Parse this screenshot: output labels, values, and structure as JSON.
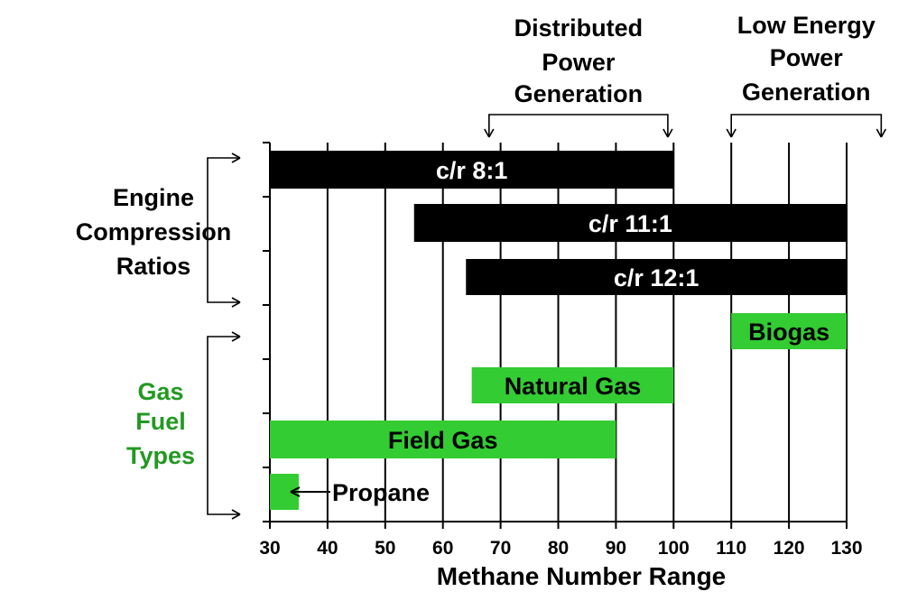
{
  "chart_data": {
    "type": "bar",
    "orientation": "horizontal-range",
    "xlabel": "Methane Number Range",
    "xlim": [
      30,
      130
    ],
    "xticks": [
      30,
      40,
      50,
      60,
      70,
      80,
      90,
      100,
      110,
      120,
      130
    ],
    "tick_labels": [
      "30",
      "40",
      "50",
      "60",
      "70",
      "80",
      "90",
      "100",
      "110",
      "120",
      "130"
    ],
    "grid": true,
    "bars": [
      {
        "label": "c/r 8:1",
        "start": 30,
        "end": 100,
        "group": "engine",
        "color": "#000000"
      },
      {
        "label": "c/r 11:1",
        "start": 55,
        "end": 130,
        "group": "engine",
        "color": "#000000"
      },
      {
        "label": "c/r 12:1",
        "start": 64,
        "end": 130,
        "group": "engine",
        "color": "#000000"
      },
      {
        "label": "Biogas",
        "start": 110,
        "end": 130,
        "group": "fuel",
        "color": "#33cc33"
      },
      {
        "label": "Natural Gas",
        "start": 65,
        "end": 100,
        "group": "fuel",
        "color": "#33cc33"
      },
      {
        "label": "Field Gas",
        "start": 30,
        "end": 90,
        "group": "fuel",
        "color": "#33cc33"
      },
      {
        "label": "Propane",
        "start": 30,
        "end": 35,
        "group": "fuel",
        "color": "#33cc33"
      }
    ],
    "groups": [
      {
        "key": "engine",
        "lines": [
          "Engine",
          "Compression",
          "Ratios"
        ],
        "color": "#000000"
      },
      {
        "key": "fuel",
        "lines": [
          "Gas",
          "Fuel",
          "Types"
        ],
        "color": "#229922"
      }
    ],
    "ranges": [
      {
        "lines": [
          "Distributed",
          "Power",
          "Generation"
        ],
        "start": 68,
        "end": 99
      },
      {
        "lines": [
          "Low Energy",
          "Power",
          "Generation"
        ],
        "start": 110,
        "end": 136
      }
    ]
  }
}
